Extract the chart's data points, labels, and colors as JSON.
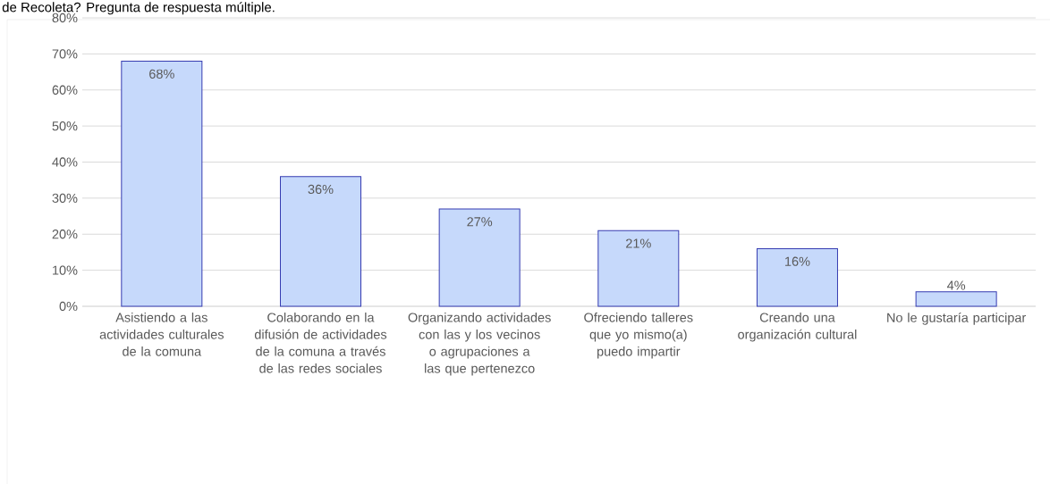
{
  "chart_data": {
    "type": "bar",
    "title": "de Recoleta? Pregunta de respuesta múltiple.",
    "categories": [
      "Asistiendo a las actividades culturales de la comuna",
      "Colaborando en la difusión de actividades de la comuna a través de las redes sociales",
      "Organizando actividades con las y los vecinos o agrupaciones a las que pertenezco",
      "Ofreciendo talleres que yo mismo(a) puedo impartir",
      "Creando una organización cultural",
      "No le gustaría participar"
    ],
    "values": [
      68,
      36,
      27,
      21,
      16,
      4
    ],
    "value_labels": [
      "68%",
      "36%",
      "27%",
      "21%",
      "16%",
      "4%"
    ],
    "color": "#c6d9fb",
    "ylim": [
      0,
      80
    ],
    "yticks": [
      {
        "value": 0,
        "label": "0%"
      },
      {
        "value": 10,
        "label": "10%"
      },
      {
        "value": 20,
        "label": "20%"
      },
      {
        "value": 30,
        "label": "30%"
      },
      {
        "value": 40,
        "label": "40%"
      },
      {
        "value": 50,
        "label": "50%"
      },
      {
        "value": 60,
        "label": "60%"
      },
      {
        "value": 70,
        "label": "70%"
      },
      {
        "value": 80,
        "label": "80%"
      }
    ],
    "grid": "y"
  }
}
